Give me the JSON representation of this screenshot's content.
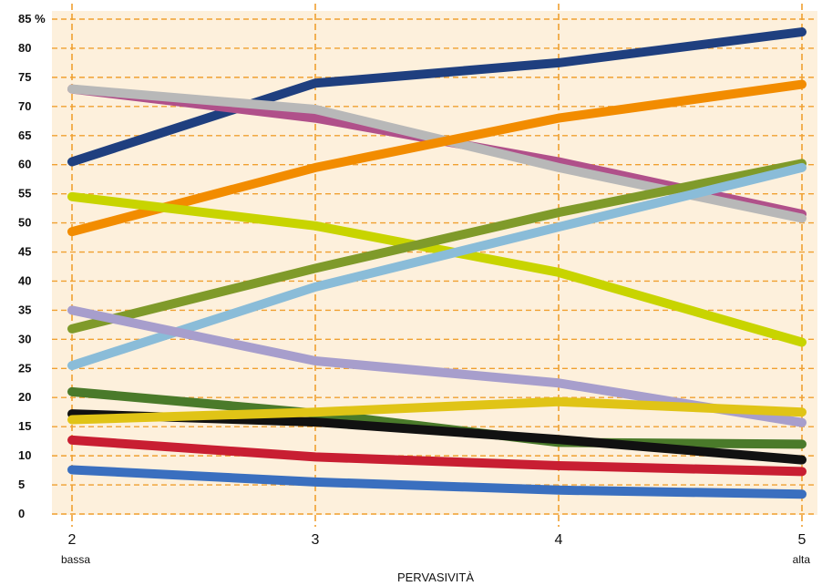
{
  "chart_data": {
    "type": "line",
    "title": "",
    "xlabel": "PERVASIVITÀ",
    "ylabel": "",
    "x": [
      2,
      3,
      4,
      5
    ],
    "x_tick_labels": [
      "2",
      "3",
      "4",
      "5"
    ],
    "x_sublabels": [
      "bassa",
      "",
      "",
      "alta"
    ],
    "y_ticks": [
      0,
      5,
      10,
      15,
      20,
      25,
      30,
      35,
      40,
      45,
      50,
      55,
      60,
      65,
      70,
      75,
      80,
      85
    ],
    "y_tick_labels": [
      "0",
      "5",
      "10",
      "15",
      "20",
      "25",
      "30",
      "35",
      "40",
      "45",
      "50",
      "55",
      "60",
      "65",
      "70",
      "75",
      "80",
      "85 %"
    ],
    "ylim": [
      0,
      85
    ],
    "xlim": [
      2,
      5
    ],
    "grid": true,
    "legend": false,
    "plot_background": "#fdf0dc",
    "grid_color": "#f0a030",
    "series": [
      {
        "color": "#1f3f7f",
        "values": [
          60.5,
          74,
          77.5,
          82.8
        ]
      },
      {
        "color": "#b0508a",
        "values": [
          73,
          68,
          60.5,
          51.5
        ]
      },
      {
        "color": "#b8b8b8",
        "values": [
          73,
          69.5,
          59.5,
          50.8
        ]
      },
      {
        "color": "#f28c00",
        "values": [
          48.5,
          59.5,
          68,
          73.8
        ]
      },
      {
        "color": "#c8d400",
        "values": [
          54.5,
          49.5,
          41.5,
          29.5
        ]
      },
      {
        "color": "#7f9a2a",
        "values": [
          31.8,
          42.2,
          51.8,
          60.2
        ]
      },
      {
        "color": "#8abcd8",
        "values": [
          25.5,
          39,
          49.3,
          59.5
        ]
      },
      {
        "color": "#a79ecc",
        "values": [
          35,
          26.3,
          22.5,
          15.7
        ]
      },
      {
        "color": "#4a7a2a",
        "values": [
          21,
          17.3,
          12.3,
          12
        ]
      },
      {
        "color": "#111111",
        "values": [
          17.2,
          15.8,
          12.8,
          9.3
        ]
      },
      {
        "color": "#e0c416",
        "values": [
          16.2,
          17.5,
          19.3,
          17.5
        ]
      },
      {
        "color": "#c81e32",
        "values": [
          12.7,
          9.8,
          8.3,
          7.3
        ]
      },
      {
        "color": "#3a6fbf",
        "values": [
          7.6,
          5.5,
          4.1,
          3.4
        ]
      }
    ]
  }
}
